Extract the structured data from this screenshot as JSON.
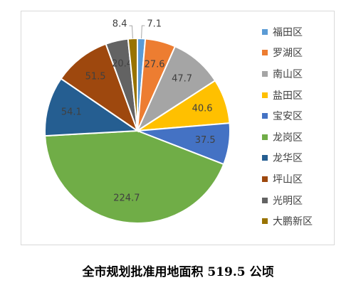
{
  "caption": "全市规划批准用地面积 519.5 公顷",
  "chart_data": {
    "type": "pie",
    "title": "",
    "categories": [
      "福田区",
      "罗湖区",
      "南山区",
      "盐田区",
      "宝安区",
      "龙岗区",
      "龙华区",
      "坪山区",
      "光明区",
      "大鹏新区"
    ],
    "values": [
      7.1,
      27.6,
      47.7,
      40.6,
      37.5,
      224.7,
      54.1,
      51.5,
      20.4,
      8.4
    ],
    "value_labels": [
      "7.1",
      "27.6",
      "47.7",
      "40.6",
      "37.5",
      "224.7",
      "54.1",
      "51.5",
      "20.4",
      "8.4"
    ],
    "colors": [
      "#5b9bd5",
      "#ed7d31",
      "#a5a5a5",
      "#ffc000",
      "#4472c4",
      "#70ad47",
      "#255e91",
      "#9e480e",
      "#636363",
      "#997300"
    ],
    "legend_position": "right",
    "start_angle_deg": 0,
    "direction": "clockwise"
  }
}
